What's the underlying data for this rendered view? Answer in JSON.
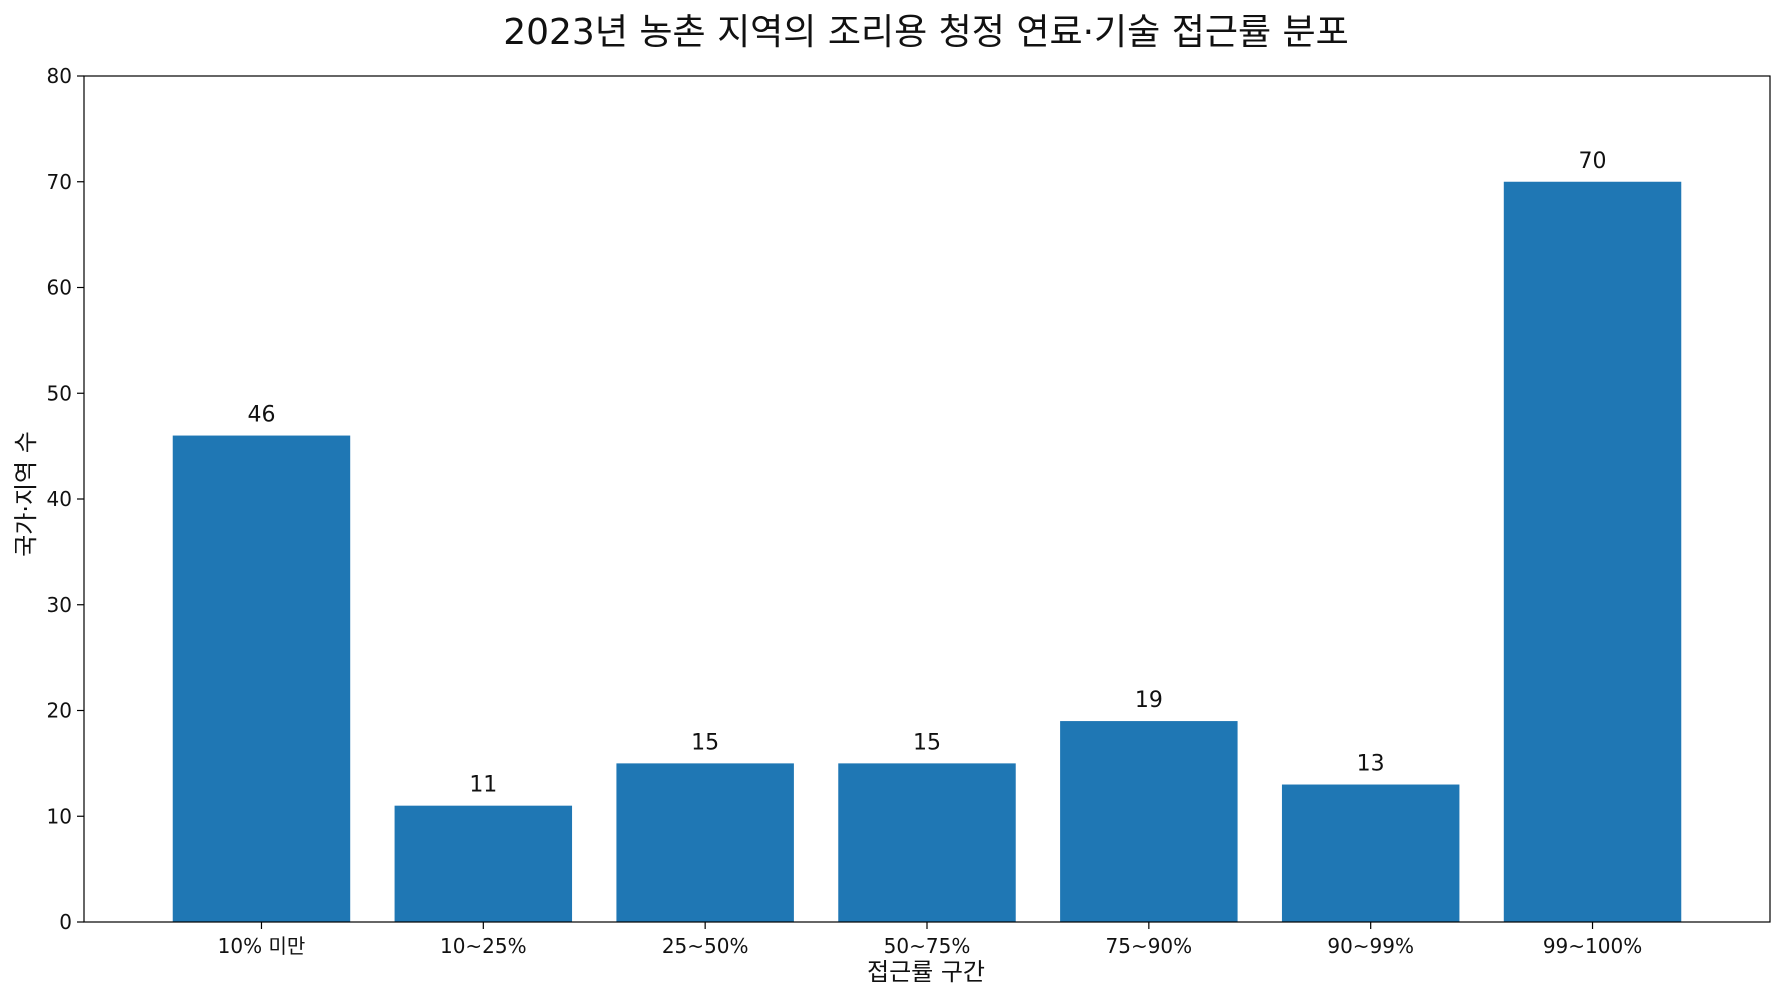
{
  "chart_data": {
    "type": "bar",
    "title": "2023년 농촌 지역의 조리용 청정 연료·기술 접근률 분포",
    "xlabel": "접근률 구간",
    "ylabel": "국가·지역 수",
    "categories": [
      "10% 미만",
      "10~25%",
      "25~50%",
      "50~75%",
      "75~90%",
      "90~99%",
      "99~100%"
    ],
    "values": [
      46,
      11,
      15,
      15,
      19,
      13,
      70
    ],
    "ylim": [
      0,
      80
    ],
    "yticks": [
      0,
      10,
      20,
      30,
      40,
      50,
      60,
      70,
      80
    ],
    "grid": false,
    "bar_color": "#1f77b4",
    "data_labels": true
  }
}
